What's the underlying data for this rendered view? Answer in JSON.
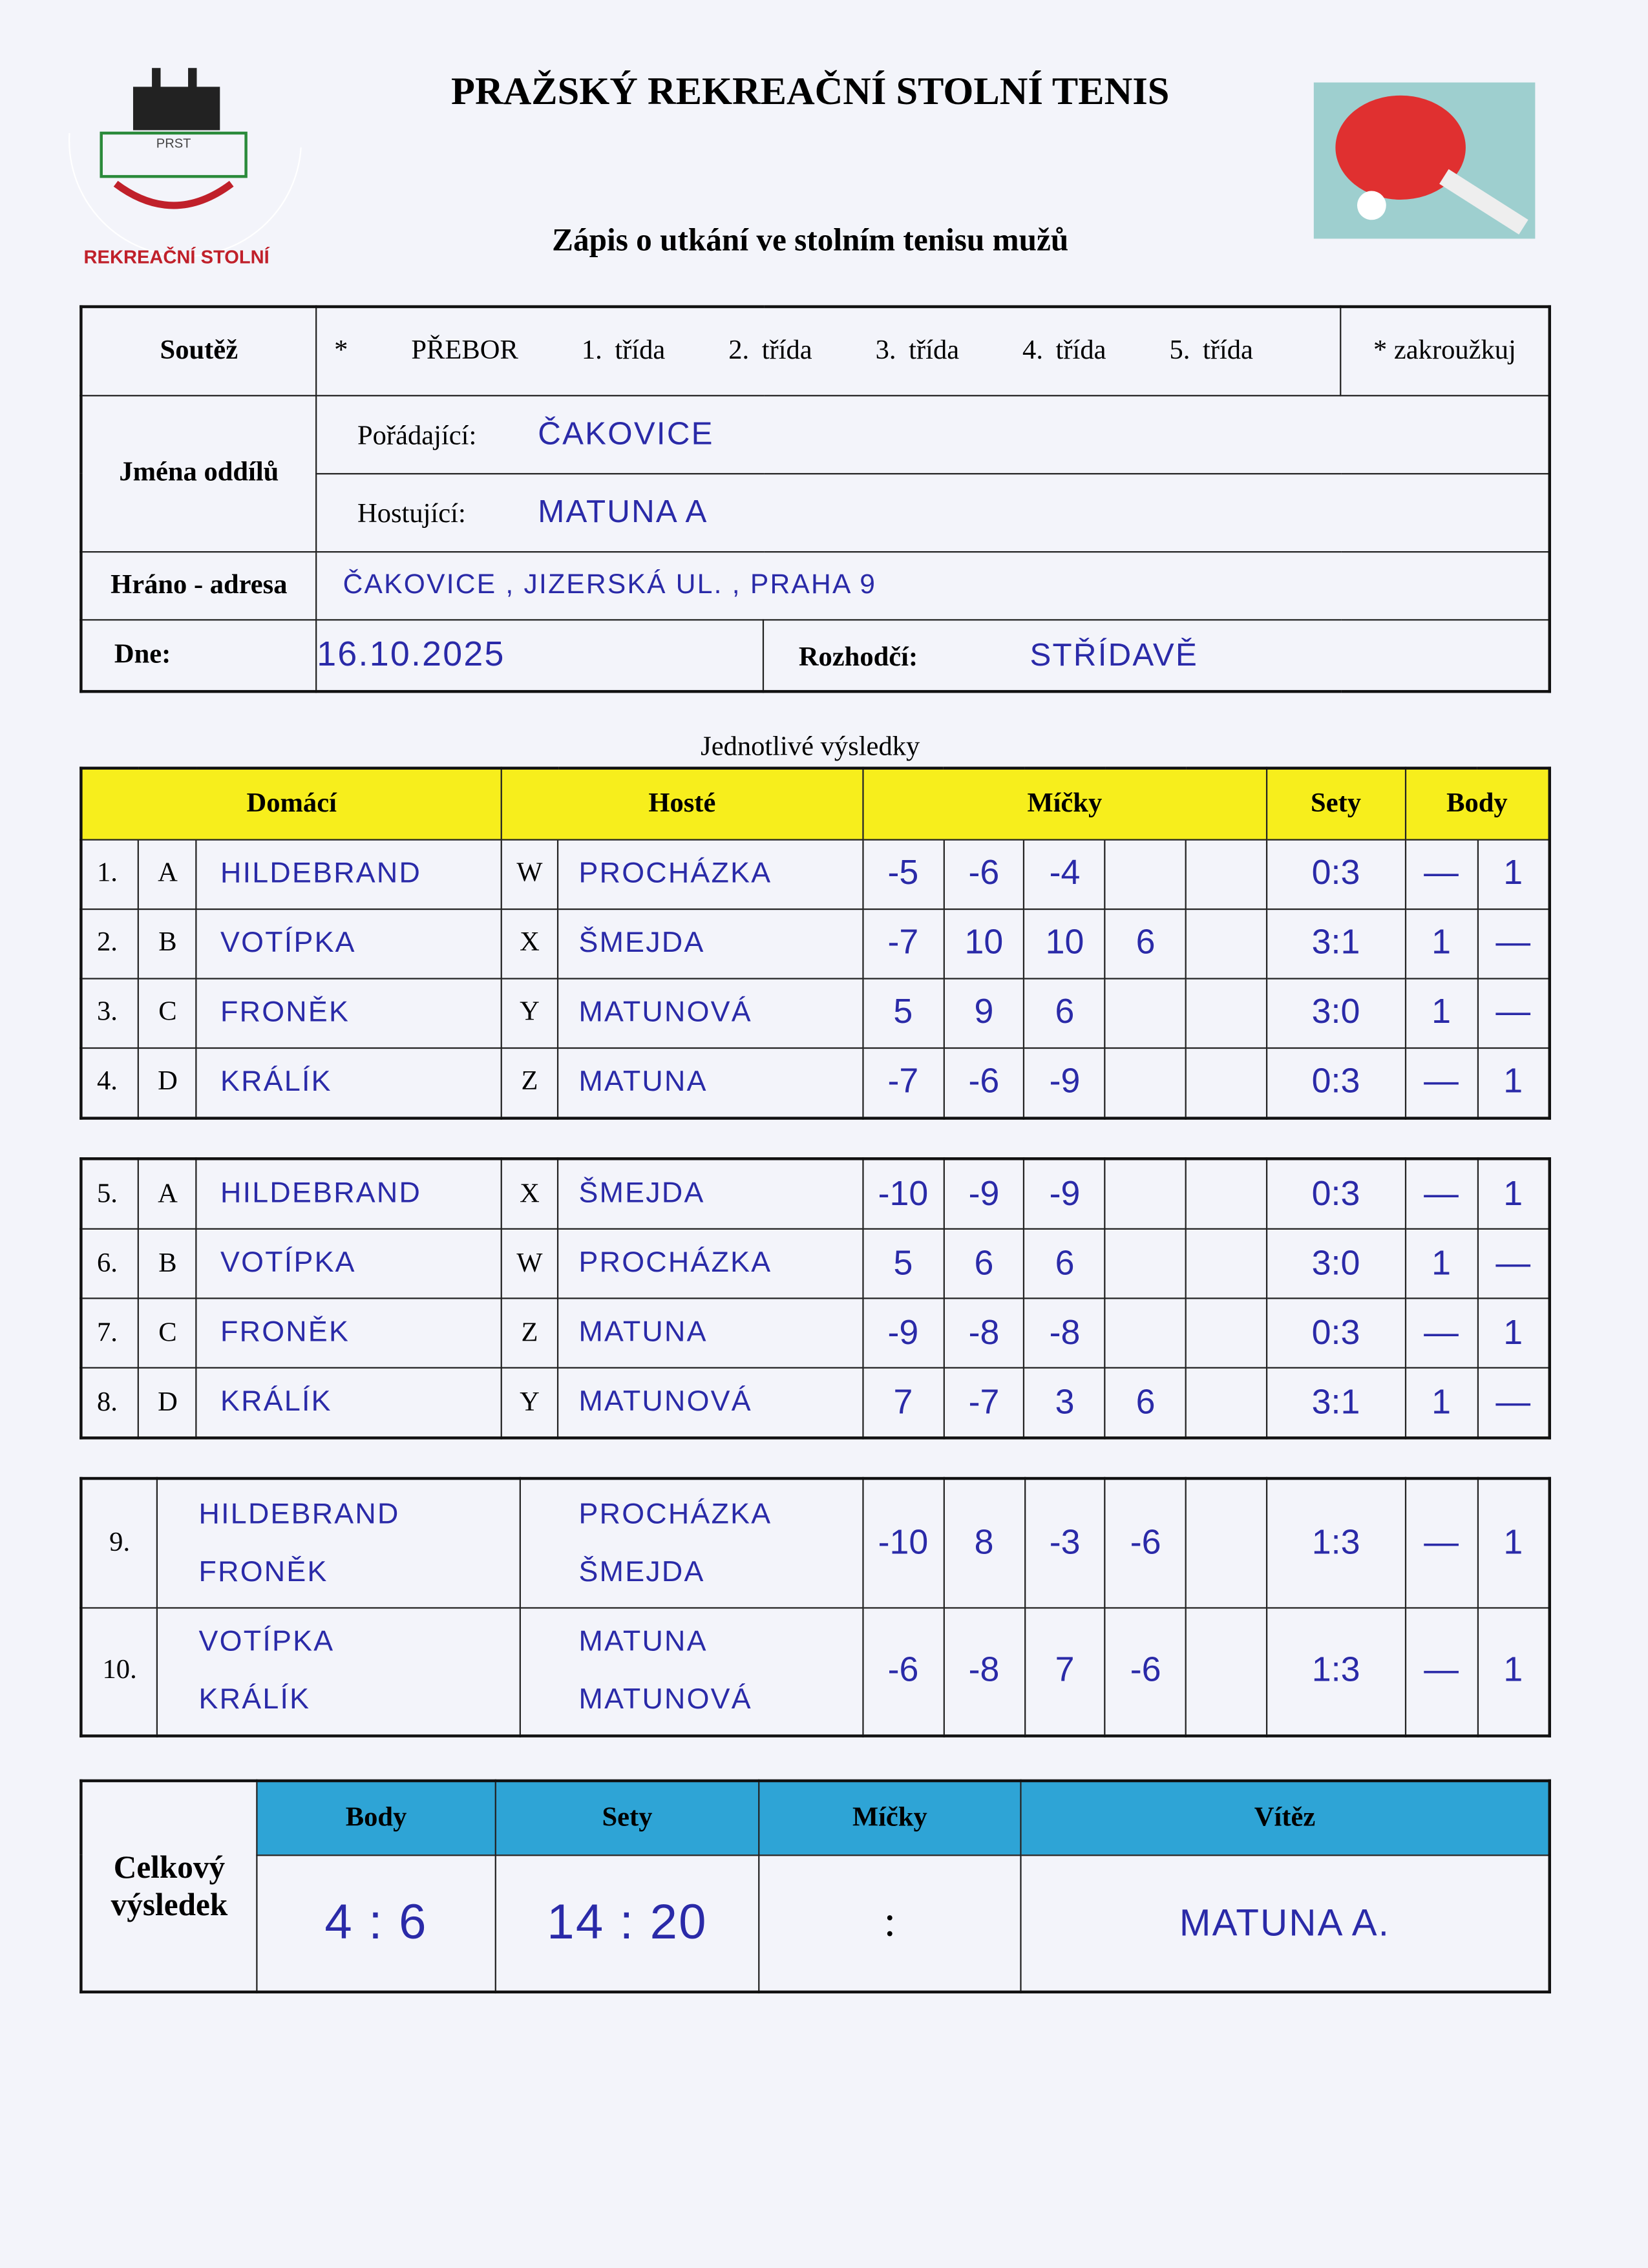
{
  "header": {
    "title": "PRAŽSKÝ REKREAČNÍ STOLNÍ TENIS",
    "subtitle": "Zápis o utkání ve stolním tenisu mužů",
    "logo_text": "PRAŽSKÝ REKREAČNÍ STOLNÍ TENIS",
    "logo_abbr": "PRST"
  },
  "info": {
    "soutez_label": "Soutěž",
    "star": "*",
    "classes": [
      "PŘEBOR",
      "1. třída",
      "2. třída",
      "3. třída",
      "4. třída",
      "5. třída"
    ],
    "circle_note": "* zakroužkuj",
    "teams_label": "Jména oddílů",
    "host_label": "Pořádající:",
    "host_value": "ČAKOVICE",
    "guest_label": "Hostující:",
    "guest_value": "MATUNA A",
    "address_label": "Hráno - adresa",
    "address_value": "ČAKOVICE , JIZERSKÁ UL. , PRAHA 9",
    "date_label": "Dne:",
    "date_value": "16.10.2025",
    "referee_label": "Rozhodčí:",
    "referee_value": "STŘÍDAVĚ"
  },
  "results": {
    "caption": "Jednotlivé výsledky",
    "headers": {
      "home": "Domácí",
      "guest": "Hosté",
      "balls": "Míčky",
      "sets": "Sety",
      "points": "Body"
    },
    "singles1": [
      {
        "no": "1.",
        "hl": "A",
        "home": "HILDEBRAND",
        "gl": "W",
        "guest": "PROCHÁZKA",
        "balls": [
          "-5",
          "-6",
          "-4",
          "",
          ""
        ],
        "sets": "0:3",
        "p1": "—",
        "p2": "1"
      },
      {
        "no": "2.",
        "hl": "B",
        "home": "VOTÍPKA",
        "gl": "X",
        "guest": "ŠMEJDA",
        "balls": [
          "-7",
          "10",
          "10",
          "6",
          ""
        ],
        "sets": "3:1",
        "p1": "1",
        "p2": "—"
      },
      {
        "no": "3.",
        "hl": "C",
        "home": "FRONĚK",
        "gl": "Y",
        "guest": "MATUNOVÁ",
        "balls": [
          "5",
          "9",
          "6",
          "",
          ""
        ],
        "sets": "3:0",
        "p1": "1",
        "p2": "—"
      },
      {
        "no": "4.",
        "hl": "D",
        "home": "KRÁLÍK",
        "gl": "Z",
        "guest": "MATUNA",
        "balls": [
          "-7",
          "-6",
          "-9",
          "",
          ""
        ],
        "sets": "0:3",
        "p1": "—",
        "p2": "1"
      }
    ],
    "singles2": [
      {
        "no": "5.",
        "hl": "A",
        "home": "HILDEBRAND",
        "gl": "X",
        "guest": "ŠMEJDA",
        "balls": [
          "-10",
          "-9",
          "-9",
          "",
          ""
        ],
        "sets": "0:3",
        "p1": "—",
        "p2": "1"
      },
      {
        "no": "6.",
        "hl": "B",
        "home": "VOTÍPKA",
        "gl": "W",
        "guest": "PROCHÁZKA",
        "balls": [
          "5",
          "6",
          "6",
          "",
          ""
        ],
        "sets": "3:0",
        "p1": "1",
        "p2": "—"
      },
      {
        "no": "7.",
        "hl": "C",
        "home": "FRONĚK",
        "gl": "Z",
        "guest": "MATUNA",
        "balls": [
          "-9",
          "-8",
          "-8",
          "",
          ""
        ],
        "sets": "0:3",
        "p1": "—",
        "p2": "1"
      },
      {
        "no": "8.",
        "hl": "D",
        "home": "KRÁLÍK",
        "gl": "Y",
        "guest": "MATUNOVÁ",
        "balls": [
          "7",
          "-7",
          "3",
          "6",
          ""
        ],
        "sets": "3:1",
        "p1": "1",
        "p2": "—"
      }
    ],
    "doubles": [
      {
        "no": "9.",
        "home": [
          "HILDEBRAND",
          "FRONĚK"
        ],
        "guest": [
          "PROCHÁZKA",
          "ŠMEJDA"
        ],
        "balls": [
          "-10",
          "8",
          "-3",
          "-6",
          ""
        ],
        "sets": "1:3",
        "p1": "—",
        "p2": "1"
      },
      {
        "no": "10.",
        "home": [
          "VOTÍPKA",
          "KRÁLÍK"
        ],
        "guest": [
          "MATUNA",
          "MATUNOVÁ"
        ],
        "balls": [
          "-6",
          "-8",
          "7",
          "-6",
          ""
        ],
        "sets": "1:3",
        "p1": "—",
        "p2": "1"
      }
    ]
  },
  "summary": {
    "label": "Celkový výsledek",
    "headers": {
      "points": "Body",
      "sets": "Sety",
      "balls": "Míčky",
      "winner": "Vítěz"
    },
    "points": "4 : 6",
    "sets": "14 : 20",
    "balls": ":",
    "winner": "MATUNA A."
  },
  "colors": {
    "yellow": "#f7ee1c",
    "blue": "#2ea4d6",
    "ink": "#2a2aa8"
  }
}
